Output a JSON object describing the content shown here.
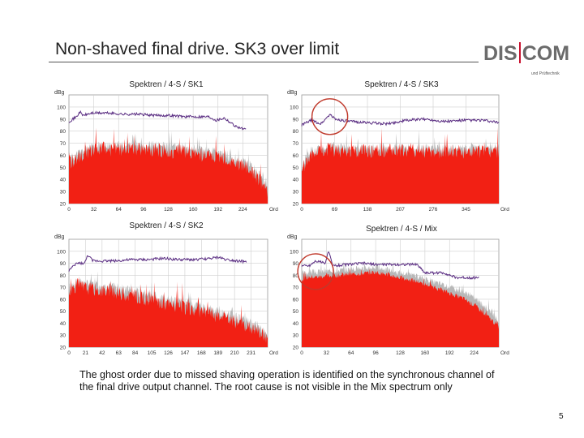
{
  "slide": {
    "title": "Non-shaved final drive. SK3 over limit",
    "caption": "The ghost order due to missed shaving operation is identified on the synchronous channel of the final drive output channel. The root cause is not visible in the Mix spectrum only",
    "page_number": "5"
  },
  "logo": {
    "left": "DIS",
    "right": "COM",
    "sub": "und Prüftechnik"
  },
  "colors": {
    "spectrum_red": "#f22014",
    "envelope_gray": "#b8b8b8",
    "purple_trace": "#5a2d82",
    "highlight_circle": "#c0392b",
    "grid": "#cfcfcf"
  },
  "chart_data": [
    {
      "type": "line",
      "title": "Spektren / 4-S / SK1",
      "ylabel": "dBg",
      "ylim": [
        20,
        110
      ],
      "y_ticks": [
        "110",
        "100",
        "90",
        "80",
        "70",
        "60",
        "50",
        "40",
        "30",
        "20"
      ],
      "x_ticks": [
        "0",
        "32",
        "64",
        "96",
        "128",
        "160",
        "192",
        "224"
      ],
      "x_unit": "Ord",
      "xlim": [
        0,
        256
      ],
      "grid": true,
      "highlight": null,
      "series": [
        {
          "role": "red",
          "x": [
            0,
            20,
            40,
            60,
            80,
            100,
            120,
            140,
            160,
            180,
            200,
            215,
            230,
            240,
            250,
            256
          ],
          "values": [
            52,
            60,
            63,
            63,
            64,
            63,
            62,
            61,
            60,
            58,
            55,
            52,
            48,
            42,
            34,
            28
          ]
        },
        {
          "role": "gray",
          "x": [
            0,
            20,
            40,
            60,
            80,
            100,
            120,
            140,
            160,
            180,
            200,
            215,
            230,
            240,
            250,
            256
          ],
          "values": [
            55,
            63,
            66,
            66,
            67,
            67,
            66,
            65,
            64,
            62,
            59,
            56,
            52,
            46,
            38,
            30
          ]
        },
        {
          "role": "purple",
          "x": [
            0,
            10,
            14,
            18,
            30,
            50,
            70,
            90,
            110,
            130,
            150,
            170,
            180,
            190,
            200,
            215,
            228
          ],
          "values": [
            88,
            92,
            96,
            93,
            95,
            95,
            94,
            94,
            93,
            93,
            92,
            92,
            92,
            89,
            91,
            84,
            81
          ]
        }
      ]
    },
    {
      "type": "line",
      "title": "Spektren / 4-S / SK3",
      "ylabel": "dBg",
      "ylim": [
        20,
        110
      ],
      "y_ticks": [
        "110",
        "100",
        "90",
        "80",
        "70",
        "60",
        "50",
        "40",
        "30",
        "20"
      ],
      "x_ticks": [
        "0",
        "69",
        "138",
        "207",
        "276",
        "345"
      ],
      "x_unit": "Ord",
      "xlim": [
        0,
        414
      ],
      "grid": true,
      "highlight": {
        "x": 59,
        "y": 92
      },
      "series": [
        {
          "role": "red",
          "x": [
            0,
            20,
            40,
            59,
            80,
            120,
            160,
            200,
            240,
            280,
            320,
            360,
            400,
            414
          ],
          "values": [
            46,
            58,
            61,
            63,
            62,
            62,
            62,
            62,
            62,
            61,
            61,
            61,
            61,
            61
          ]
        },
        {
          "role": "gray",
          "x": [
            0,
            20,
            40,
            59,
            80,
            120,
            160,
            200,
            240,
            280,
            320,
            360,
            400,
            414
          ],
          "values": [
            50,
            62,
            64,
            66,
            65,
            64,
            64,
            64,
            64,
            64,
            64,
            64,
            64,
            64
          ]
        },
        {
          "role": "purple",
          "x": [
            0,
            20,
            40,
            50,
            59,
            70,
            100,
            140,
            180,
            220,
            260,
            300,
            340,
            380,
            414
          ],
          "values": [
            85,
            89,
            86,
            90,
            94,
            90,
            88,
            87,
            86,
            89,
            90,
            88,
            89,
            89,
            87
          ]
        }
      ]
    },
    {
      "type": "line",
      "title": "Spektren / 4-S / SK2",
      "ylabel": "dBg",
      "ylim": [
        20,
        110
      ],
      "y_ticks": [
        "110",
        "100",
        "90",
        "80",
        "70",
        "60",
        "50",
        "40",
        "30",
        "20"
      ],
      "x_ticks": [
        "0",
        "21",
        "42",
        "63",
        "84",
        "105",
        "126",
        "147",
        "168",
        "189",
        "210",
        "231"
      ],
      "x_unit": "Ord",
      "xlim": [
        0,
        252
      ],
      "grid": true,
      "highlight": null,
      "series": [
        {
          "role": "red",
          "x": [
            0,
            10,
            20,
            40,
            60,
            80,
            100,
            120,
            140,
            160,
            180,
            200,
            220,
            240,
            252
          ],
          "values": [
            65,
            70,
            68,
            66,
            64,
            61,
            58,
            55,
            52,
            49,
            46,
            42,
            38,
            32,
            25
          ]
        },
        {
          "role": "gray",
          "x": [
            0,
            10,
            20,
            40,
            60,
            80,
            100,
            120,
            140,
            160,
            180,
            200,
            220,
            240,
            252
          ],
          "values": [
            68,
            73,
            72,
            70,
            68,
            65,
            62,
            59,
            56,
            53,
            50,
            46,
            42,
            36,
            28
          ]
        },
        {
          "role": "purple",
          "x": [
            0,
            10,
            20,
            24,
            30,
            40,
            60,
            80,
            100,
            120,
            140,
            160,
            180,
            190,
            200,
            215,
            225
          ],
          "values": [
            84,
            90,
            90,
            97,
            92,
            92,
            92,
            93,
            93,
            94,
            93,
            93,
            94,
            95,
            93,
            92,
            91
          ]
        }
      ]
    },
    {
      "type": "line",
      "title": "Spektren / 4-S / Mix",
      "ylabel": "dBg",
      "ylim": [
        20,
        110
      ],
      "y_ticks": [
        "110",
        "100",
        "90",
        "80",
        "70",
        "60",
        "50",
        "40",
        "30",
        "20"
      ],
      "x_ticks": [
        "0",
        "32",
        "64",
        "96",
        "128",
        "160",
        "192",
        "224"
      ],
      "x_unit": "Ord",
      "xlim": [
        0,
        256
      ],
      "grid": true,
      "highlight": {
        "x": 18,
        "y": 83
      },
      "series": [
        {
          "role": "red",
          "x": [
            0,
            10,
            20,
            40,
            60,
            80,
            96,
            110,
            130,
            150,
            170,
            190,
            210,
            225,
            240,
            250,
            256
          ],
          "values": [
            76,
            78,
            78,
            79,
            80,
            81,
            82,
            80,
            77,
            74,
            70,
            65,
            60,
            54,
            46,
            40,
            36
          ]
        },
        {
          "role": "gray",
          "x": [
            0,
            10,
            20,
            40,
            60,
            80,
            96,
            110,
            130,
            150,
            170,
            190,
            210,
            225,
            240,
            250,
            256
          ],
          "values": [
            80,
            82,
            82,
            83,
            84,
            85,
            86,
            84,
            81,
            78,
            74,
            70,
            65,
            60,
            52,
            46,
            40
          ]
        },
        {
          "role": "purple",
          "x": [
            0,
            10,
            18,
            30,
            35,
            40,
            60,
            80,
            96,
            110,
            130,
            150,
            160,
            170,
            185,
            200,
            230
          ],
          "values": [
            88,
            88,
            92,
            90,
            100,
            88,
            89,
            90,
            89,
            89,
            89,
            89,
            82,
            82,
            82,
            78,
            78
          ]
        }
      ]
    }
  ]
}
